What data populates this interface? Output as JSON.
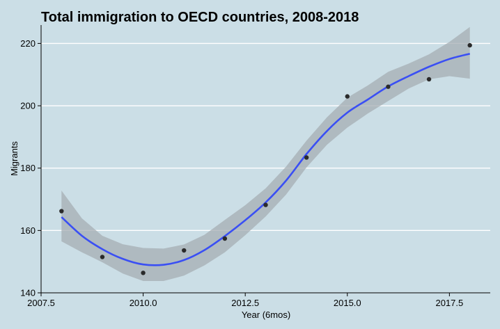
{
  "chart_data": {
    "type": "scatter",
    "title": "Total immigration to OECD countries, 2008-2018",
    "xlabel": "Year (6mos)",
    "ylabel": "Migrants",
    "xlim": [
      2007.5,
      2018.5
    ],
    "ylim": [
      140,
      225
    ],
    "x_ticks": [
      2007.5,
      2010,
      2012.5,
      2015,
      2017.5
    ],
    "x_tick_labels": [
      "2007.5",
      "2010.0",
      "2012.5",
      "2015.0",
      "2017.5"
    ],
    "y_ticks": [
      140,
      160,
      180,
      200,
      220
    ],
    "y_tick_labels": [
      "140",
      "160",
      "180",
      "200",
      "220"
    ],
    "grid": "horizontal",
    "points": [
      {
        "x": 2008,
        "y": 166.2
      },
      {
        "x": 2009,
        "y": 151.5
      },
      {
        "x": 2010,
        "y": 146.4
      },
      {
        "x": 2011,
        "y": 153.6
      },
      {
        "x": 2012,
        "y": 157.4
      },
      {
        "x": 2013,
        "y": 168.2
      },
      {
        "x": 2014,
        "y": 183.4
      },
      {
        "x": 2015,
        "y": 203.0
      },
      {
        "x": 2016,
        "y": 206.1
      },
      {
        "x": 2017,
        "y": 208.5
      },
      {
        "x": 2018,
        "y": 219.4
      }
    ],
    "smooth": {
      "method": "loess",
      "x": [
        2008,
        2008.5,
        2009,
        2009.5,
        2010,
        2010.5,
        2011,
        2011.5,
        2012,
        2012.5,
        2013,
        2013.5,
        2014,
        2014.5,
        2015,
        2015.5,
        2016,
        2016.5,
        2017,
        2017.5,
        2018
      ],
      "y": [
        164.3,
        158.3,
        154.0,
        150.9,
        149.1,
        149.0,
        150.5,
        153.7,
        158.2,
        163.3,
        169.0,
        176.0,
        184.5,
        191.9,
        197.8,
        202.0,
        206.2,
        209.5,
        212.5,
        215.0,
        216.7
      ],
      "lower": [
        156.5,
        153.0,
        149.8,
        146.2,
        143.8,
        143.8,
        145.5,
        148.8,
        153.0,
        158.5,
        164.5,
        171.5,
        180.2,
        187.5,
        193.0,
        197.5,
        201.5,
        205.5,
        208.5,
        209.5,
        208.7
      ],
      "upper": [
        172.8,
        163.9,
        158.3,
        155.6,
        154.4,
        154.2,
        155.5,
        158.6,
        163.4,
        168.1,
        173.5,
        180.5,
        188.8,
        196.3,
        202.6,
        206.5,
        210.9,
        213.5,
        216.5,
        220.5,
        225.3
      ]
    },
    "colors": {
      "background": "#cbdee6",
      "grid": "#ffffff",
      "line": "#3a4ff4",
      "ribbon": "#a6aeb3",
      "points": "#2a2a2a"
    }
  }
}
